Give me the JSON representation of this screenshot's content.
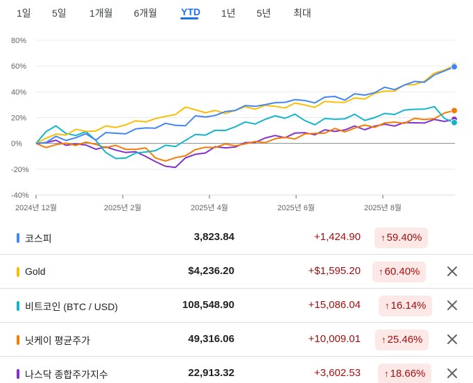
{
  "tabs": [
    {
      "label": "1일",
      "active": false
    },
    {
      "label": "5일",
      "active": false
    },
    {
      "label": "1개월",
      "active": false
    },
    {
      "label": "6개월",
      "active": false
    },
    {
      "label": "YTD",
      "active": true
    },
    {
      "label": "1년",
      "active": false
    },
    {
      "label": "5년",
      "active": false
    },
    {
      "label": "최대",
      "active": false
    }
  ],
  "chart_data": {
    "type": "line",
    "y_unit": "%",
    "ylim": [
      -40,
      80
    ],
    "yticks": [
      "80%",
      "60%",
      "40%",
      "20%",
      "0%",
      "-20%",
      "-40%"
    ],
    "xticks": [
      "2024년 12월",
      "2025년 2월",
      "2025년 4월",
      "2025년 6월",
      "2025년 8월"
    ],
    "grid": true,
    "series": [
      {
        "name": "코스피",
        "color": "#4285f4",
        "values": [
          0,
          2,
          4,
          3,
          5,
          6,
          4,
          8,
          7,
          9,
          10,
          12,
          13,
          14,
          15,
          14,
          20,
          22,
          21,
          24,
          27,
          28,
          29,
          31,
          30,
          33,
          34,
          32,
          33,
          35,
          36,
          35,
          37,
          38,
          40,
          42,
          43,
          45,
          47,
          49,
          52,
          56,
          59.4
        ]
      },
      {
        "name": "Gold",
        "color": "#fbbc04",
        "values": [
          0,
          4,
          6,
          8,
          10,
          9,
          11,
          12,
          13,
          15,
          16,
          18,
          19,
          20,
          24,
          27,
          26,
          25,
          24,
          24,
          26,
          27,
          28,
          29,
          28,
          29,
          30,
          30,
          29,
          31,
          33,
          32,
          34,
          36,
          38,
          40,
          42,
          44,
          46,
          49,
          53,
          58,
          60.4
        ]
      },
      {
        "name": "비트코인 (BTC / USD)",
        "color": "#12b5cb",
        "values": [
          0,
          10,
          12,
          9,
          6,
          8,
          4,
          -8,
          -12,
          -10,
          -9,
          -6,
          -5,
          -3,
          -1,
          2,
          6,
          8,
          9,
          10,
          14,
          15,
          16,
          19,
          20,
          21,
          22,
          17,
          16,
          18,
          19,
          20,
          21,
          19,
          20,
          22,
          24,
          25,
          26,
          28,
          27,
          20,
          16.14
        ]
      },
      {
        "name": "닛케이 평균주가",
        "color": "#f57c00",
        "values": [
          0,
          -2,
          -1,
          -1,
          0,
          0,
          -1,
          -2,
          -3,
          -4,
          -4,
          -5,
          -10,
          -14,
          -12,
          -8,
          -6,
          -3,
          -2,
          -2,
          -1,
          0,
          0,
          2,
          3,
          4,
          5,
          6,
          8,
          9,
          10,
          10,
          12,
          13,
          14,
          15,
          16,
          17,
          18,
          19,
          20,
          22,
          25.46
        ]
      },
      {
        "name": "나스닥 종합주가지수",
        "color": "#8430ce",
        "values": [
          0,
          1,
          1,
          0,
          -1,
          -2,
          -3,
          -4,
          -5,
          -6,
          -8,
          -9,
          -14,
          -19,
          -17,
          -12,
          -9,
          -6,
          -4,
          -3,
          -2,
          -1,
          2,
          4,
          5,
          6,
          7,
          8,
          8,
          9,
          10,
          11,
          12,
          12,
          13,
          14,
          15,
          15,
          16,
          17,
          17,
          18,
          18.66
        ]
      }
    ]
  },
  "rows": [
    {
      "name": "코스피",
      "color": "#4285f4",
      "price": "3,823.84",
      "change": "+1,424.90",
      "pct": "59.40%",
      "arrow": "↑",
      "removable": false
    },
    {
      "name": "Gold",
      "color": "#fbbc04",
      "price": "$4,236.20",
      "change": "+$1,595.20",
      "pct": "60.40%",
      "arrow": "↑",
      "removable": true
    },
    {
      "name": "비트코인 (BTC / USD)",
      "color": "#12b5cb",
      "price": "108,548.90",
      "change": "+15,086.04",
      "pct": "16.14%",
      "arrow": "↑",
      "removable": true
    },
    {
      "name": "닛케이 평균주가",
      "color": "#f57c00",
      "price": "49,316.06",
      "change": "+10,009.01",
      "pct": "25.46%",
      "arrow": "↑",
      "removable": true
    },
    {
      "name": "나스닥 종합주가지수",
      "color": "#8430ce",
      "price": "22,913.32",
      "change": "+3,602.53",
      "pct": "18.66%",
      "arrow": "↑",
      "removable": true
    }
  ],
  "icons": {
    "close": "close-icon",
    "arrow": "arrow-up-icon"
  }
}
